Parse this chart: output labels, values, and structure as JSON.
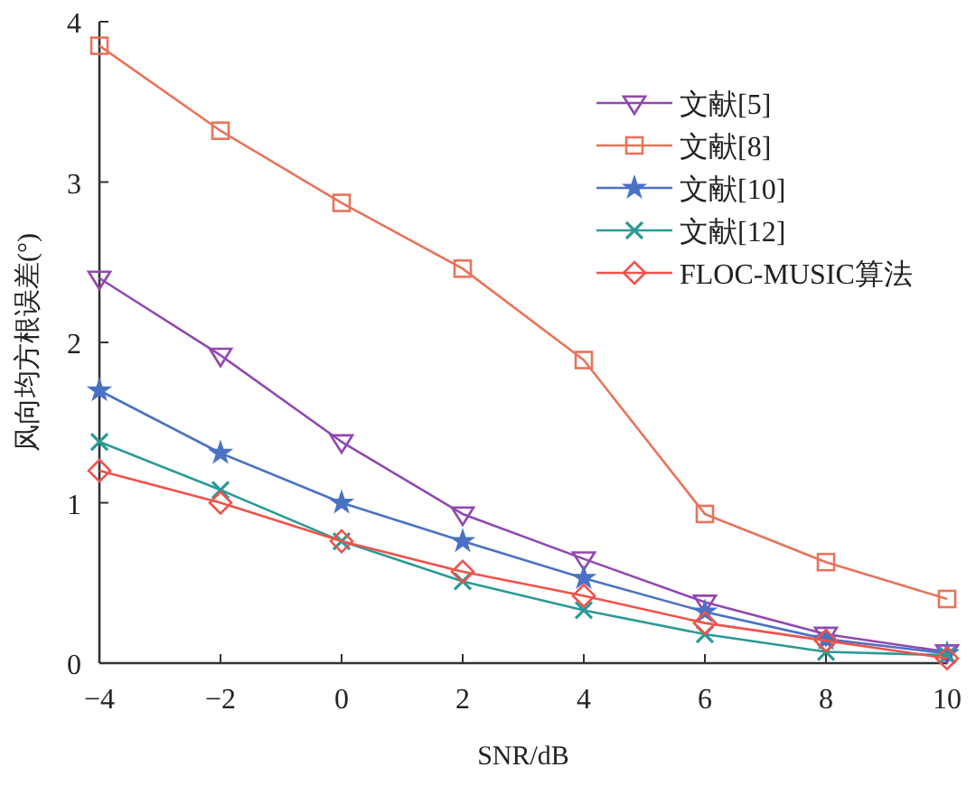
{
  "chart_data": {
    "type": "line",
    "xlabel": "SNR/dB",
    "ylabel": "风向均方根误差(°)",
    "x": [
      -4,
      -2,
      0,
      2,
      4,
      6,
      8,
      10
    ],
    "xlim": [
      -4,
      10
    ],
    "xticks": [
      -4,
      -2,
      0,
      2,
      4,
      6,
      8,
      10
    ],
    "ylim": [
      0,
      4
    ],
    "yticks": [
      0,
      1,
      2,
      3,
      4
    ],
    "grid": false,
    "legend": "top right",
    "line_style": "solid",
    "series": [
      {
        "name": "文献[5]",
        "color": "#9147b0",
        "marker": "triangle",
        "values": [
          2.4,
          1.92,
          1.38,
          0.93,
          0.65,
          0.38,
          0.18,
          0.07
        ]
      },
      {
        "name": "文献[8]",
        "color": "#e8735a",
        "marker": "square",
        "values": [
          3.85,
          3.32,
          2.87,
          2.46,
          1.89,
          0.93,
          0.63,
          0.4
        ]
      },
      {
        "name": "文献[10]",
        "color": "#4a72c4",
        "marker": "star",
        "values": [
          1.7,
          1.31,
          1.0,
          0.76,
          0.53,
          0.32,
          0.15,
          0.06
        ]
      },
      {
        "name": "文献[12]",
        "color": "#2a9a96",
        "marker": "cross",
        "values": [
          1.38,
          1.08,
          0.76,
          0.51,
          0.33,
          0.18,
          0.07,
          0.05
        ]
      },
      {
        "name": "FLOC-MUSIC算法",
        "color": "#f0524a",
        "marker": "diamond",
        "values": [
          1.2,
          1.0,
          0.76,
          0.57,
          0.42,
          0.25,
          0.14,
          0.03
        ]
      }
    ]
  }
}
